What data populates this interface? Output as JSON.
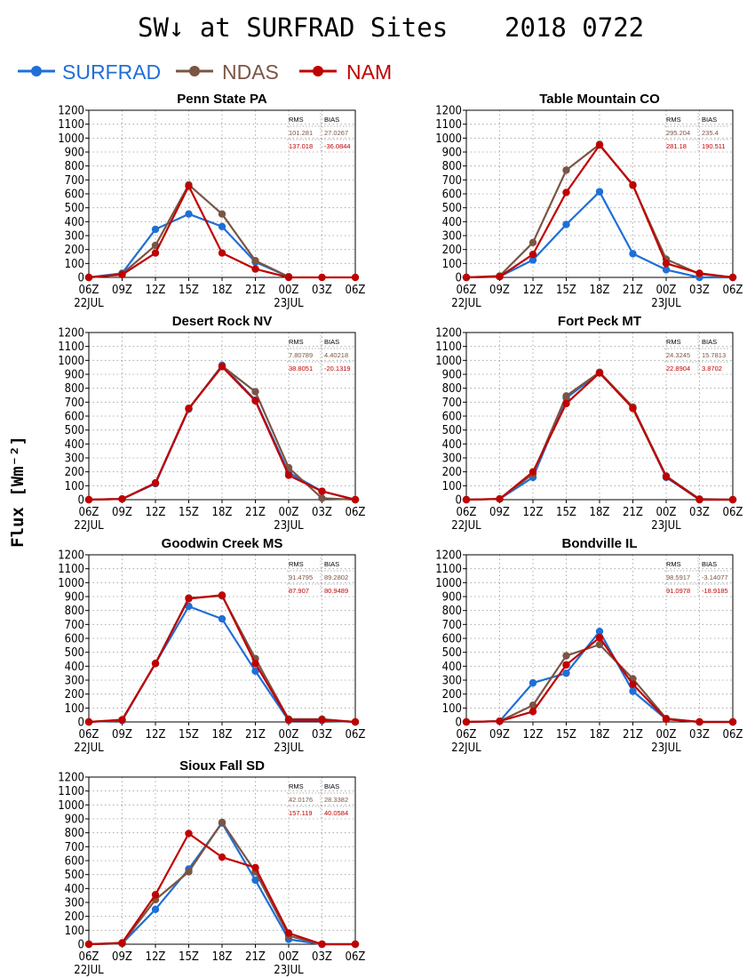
{
  "figure": {
    "title": "SW↓ at SURFRAD Sites",
    "date": "2018 0722",
    "ylabel": "Flux [Wm⁻²]",
    "legend": [
      {
        "name": "SURFRAD",
        "color": "#1f6fd6"
      },
      {
        "name": "NDAS",
        "color": "#7a5544"
      },
      {
        "name": "NAM",
        "color": "#c00000"
      }
    ],
    "stats_header": [
      "RMS",
      "BIAS"
    ]
  },
  "chart_data": [
    {
      "type": "line",
      "title": "Penn State PA",
      "x": [
        "06Z",
        "09Z",
        "12Z",
        "15Z",
        "18Z",
        "21Z",
        "00Z",
        "03Z",
        "06Z"
      ],
      "x_date_labels": {
        "0": "22JUL",
        "6": "23JUL"
      },
      "ylim": [
        0,
        1200
      ],
      "yticks": [
        0,
        100,
        200,
        300,
        400,
        500,
        600,
        700,
        800,
        900,
        1000,
        1100,
        1200
      ],
      "grid": true,
      "series": [
        {
          "name": "SURFRAD",
          "color": "#1f6fd6",
          "values": [
            0,
            30,
            345,
            455,
            365,
            110,
            5,
            null,
            null
          ]
        },
        {
          "name": "NDAS",
          "color": "#7a5544",
          "values": [
            0,
            25,
            230,
            665,
            455,
            120,
            5,
            null,
            null
          ]
        },
        {
          "name": "NAM",
          "color": "#c00000",
          "values": [
            0,
            20,
            175,
            655,
            175,
            60,
            0,
            0,
            0
          ]
        }
      ],
      "stats": [
        {
          "series": "NDAS",
          "rms": "101.281",
          "bias": "27.0267"
        },
        {
          "series": "NAM",
          "rms": "137.018",
          "bias": "-36.0844"
        }
      ]
    },
    {
      "type": "line",
      "title": "Table Mountain CO",
      "x": [
        "06Z",
        "09Z",
        "12Z",
        "15Z",
        "18Z",
        "21Z",
        "00Z",
        "03Z",
        "06Z"
      ],
      "x_date_labels": {
        "0": "22JUL",
        "6": "23JUL"
      },
      "ylim": [
        0,
        1200
      ],
      "yticks": [
        0,
        100,
        200,
        300,
        400,
        500,
        600,
        700,
        800,
        900,
        1000,
        1100,
        1200
      ],
      "grid": true,
      "series": [
        {
          "name": "SURFRAD",
          "color": "#1f6fd6",
          "values": [
            0,
            5,
            125,
            380,
            615,
            170,
            55,
            0,
            0
          ]
        },
        {
          "name": "NDAS",
          "color": "#7a5544",
          "values": [
            0,
            10,
            250,
            770,
            955,
            660,
            130,
            25,
            0
          ]
        },
        {
          "name": "NAM",
          "color": "#c00000",
          "values": [
            0,
            5,
            165,
            610,
            950,
            665,
            100,
            30,
            0
          ]
        }
      ],
      "stats": [
        {
          "series": "NDAS",
          "rms": "295.204",
          "bias": "235.4"
        },
        {
          "series": "NAM",
          "rms": "281.18",
          "bias": "190.511"
        }
      ]
    },
    {
      "type": "line",
      "title": "Desert Rock NV",
      "x": [
        "06Z",
        "09Z",
        "12Z",
        "15Z",
        "18Z",
        "21Z",
        "00Z",
        "03Z",
        "06Z"
      ],
      "x_date_labels": {
        "0": "22JUL",
        "6": "23JUL"
      },
      "ylim": [
        0,
        1200
      ],
      "yticks": [
        0,
        100,
        200,
        300,
        400,
        500,
        600,
        700,
        800,
        900,
        1000,
        1100,
        1200
      ],
      "grid": true,
      "series": [
        {
          "name": "SURFRAD",
          "color": "#1f6fd6",
          "values": [
            0,
            5,
            115,
            650,
            965,
            715,
            195,
            60,
            0
          ]
        },
        {
          "name": "NDAS",
          "color": "#7a5544",
          "values": [
            0,
            5,
            120,
            655,
            960,
            775,
            230,
            10,
            0
          ]
        },
        {
          "name": "NAM",
          "color": "#c00000",
          "values": [
            0,
            5,
            120,
            655,
            955,
            710,
            175,
            60,
            0
          ]
        }
      ],
      "stats": [
        {
          "series": "NDAS",
          "rms": "7.80789",
          "bias": "4.40218"
        },
        {
          "series": "NAM",
          "rms": "38.8051",
          "bias": "-20.1319"
        }
      ]
    },
    {
      "type": "line",
      "title": "Fort Peck MT",
      "x": [
        "06Z",
        "09Z",
        "12Z",
        "15Z",
        "18Z",
        "21Z",
        "00Z",
        "03Z",
        "06Z"
      ],
      "x_date_labels": {
        "0": "22JUL",
        "6": "23JUL"
      },
      "ylim": [
        0,
        1200
      ],
      "yticks": [
        0,
        100,
        200,
        300,
        400,
        500,
        600,
        700,
        800,
        900,
        1000,
        1100,
        1200
      ],
      "grid": true,
      "series": [
        {
          "name": "SURFRAD",
          "color": "#1f6fd6",
          "values": [
            0,
            5,
            160,
            730,
            910,
            660,
            160,
            0,
            0
          ]
        },
        {
          "name": "NDAS",
          "color": "#7a5544",
          "values": [
            0,
            5,
            185,
            745,
            915,
            665,
            170,
            5,
            0
          ]
        },
        {
          "name": "NAM",
          "color": "#c00000",
          "values": [
            0,
            5,
            200,
            690,
            910,
            655,
            165,
            0,
            0
          ]
        }
      ],
      "stats": [
        {
          "series": "NDAS",
          "rms": "24.3245",
          "bias": "15.7813"
        },
        {
          "series": "NAM",
          "rms": "22.8904",
          "bias": "3.8702"
        }
      ]
    },
    {
      "type": "line",
      "title": "Goodwin Creek MS",
      "x": [
        "06Z",
        "09Z",
        "12Z",
        "15Z",
        "18Z",
        "21Z",
        "00Z",
        "03Z",
        "06Z"
      ],
      "x_date_labels": {
        "0": "22JUL",
        "6": "23JUL"
      },
      "ylim": [
        0,
        1200
      ],
      "yticks": [
        0,
        100,
        200,
        300,
        400,
        500,
        600,
        700,
        800,
        900,
        1000,
        1100,
        1200
      ],
      "grid": true,
      "series": [
        {
          "name": "SURFRAD",
          "color": "#1f6fd6",
          "values": [
            0,
            10,
            420,
            830,
            740,
            365,
            10,
            10,
            0
          ]
        },
        {
          "name": "NDAS",
          "color": "#7a5544",
          "values": [
            0,
            15,
            420,
            890,
            905,
            455,
            20,
            20,
            0
          ]
        },
        {
          "name": "NAM",
          "color": "#c00000",
          "values": [
            0,
            15,
            420,
            885,
            910,
            420,
            15,
            15,
            0
          ]
        }
      ],
      "stats": [
        {
          "series": "NDAS",
          "rms": "91.4795",
          "bias": "89.2802"
        },
        {
          "series": "NAM",
          "rms": "87.907",
          "bias": "80.9489"
        }
      ]
    },
    {
      "type": "line",
      "title": "Bondville IL",
      "x": [
        "06Z",
        "09Z",
        "12Z",
        "15Z",
        "18Z",
        "21Z",
        "00Z",
        "03Z",
        "06Z"
      ],
      "x_date_labels": {
        "0": "22JUL",
        "6": "23JUL"
      },
      "ylim": [
        0,
        1200
      ],
      "yticks": [
        0,
        100,
        200,
        300,
        400,
        500,
        600,
        700,
        800,
        900,
        1000,
        1100,
        1200
      ],
      "grid": true,
      "series": [
        {
          "name": "SURFRAD",
          "color": "#1f6fd6",
          "values": [
            0,
            5,
            280,
            350,
            650,
            220,
            20,
            0,
            0
          ]
        },
        {
          "name": "NDAS",
          "color": "#7a5544",
          "values": [
            0,
            5,
            120,
            475,
            555,
            310,
            25,
            0,
            0
          ]
        },
        {
          "name": "NAM",
          "color": "#c00000",
          "values": [
            0,
            5,
            75,
            410,
            605,
            270,
            20,
            0,
            0
          ]
        }
      ],
      "stats": [
        {
          "series": "NDAS",
          "rms": "98.5917",
          "bias": "-3.14077"
        },
        {
          "series": "NAM",
          "rms": "91.0978",
          "bias": "-18.9185"
        }
      ]
    },
    {
      "type": "line",
      "title": "Sioux Fall SD",
      "x": [
        "06Z",
        "09Z",
        "12Z",
        "15Z",
        "18Z",
        "21Z",
        "00Z",
        "03Z",
        "06Z"
      ],
      "x_date_labels": {
        "0": "22JUL",
        "6": "23JUL"
      },
      "ylim": [
        0,
        1200
      ],
      "yticks": [
        0,
        100,
        200,
        300,
        400,
        500,
        600,
        700,
        800,
        900,
        1000,
        1100,
        1200
      ],
      "grid": true,
      "series": [
        {
          "name": "SURFRAD",
          "color": "#1f6fd6",
          "values": [
            0,
            5,
            250,
            540,
            870,
            460,
            35,
            0,
            0
          ]
        },
        {
          "name": "NDAS",
          "color": "#7a5544",
          "values": [
            0,
            5,
            320,
            520,
            875,
            520,
            60,
            0,
            0
          ]
        },
        {
          "name": "NAM",
          "color": "#c00000",
          "values": [
            0,
            10,
            355,
            795,
            625,
            550,
            80,
            0,
            0
          ]
        }
      ],
      "stats": [
        {
          "series": "NDAS",
          "rms": "42.0176",
          "bias": "28.3382"
        },
        {
          "series": "NAM",
          "rms": "157.119",
          "bias": "40.0584"
        }
      ]
    }
  ]
}
